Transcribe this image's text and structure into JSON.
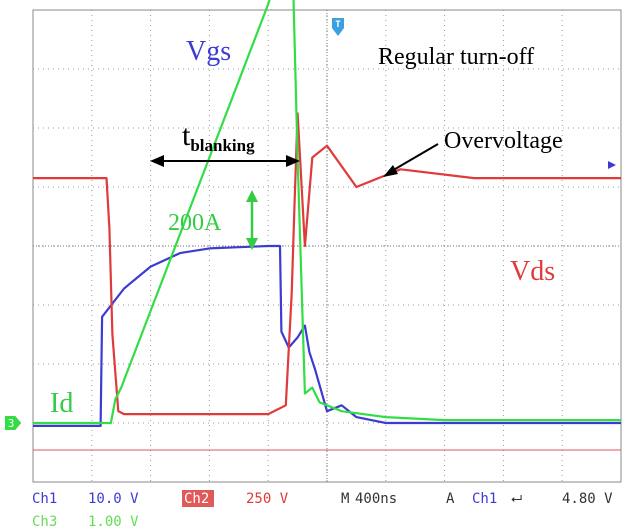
{
  "chart_data": {
    "type": "line",
    "title": "",
    "xlabel": "",
    "ylabel": "",
    "grid": true,
    "timebase": "400ns",
    "x_unit": "ns",
    "x_divisions": 10,
    "y_divisions": 8,
    "series": [
      {
        "name": "Vgs",
        "channel": "Ch1",
        "marker": "1",
        "color": "#3c3cd2",
        "x": [
          0,
          460,
          470,
          620,
          800,
          1000,
          1200,
          1400,
          1600,
          1680,
          1690,
          1740,
          1800,
          1850,
          1880,
          1920,
          2000,
          2100,
          2200,
          2400,
          2600,
          2800,
          3200,
          4000
        ],
        "values": [
          -0.05,
          -0.05,
          1.8,
          2.28,
          2.65,
          2.88,
          2.96,
          2.98,
          3.0,
          3.0,
          1.55,
          1.28,
          1.45,
          1.65,
          1.2,
          0.9,
          0.2,
          0.3,
          0.1,
          0.0,
          0.0,
          0.0,
          0.0,
          0.0
        ]
      },
      {
        "name": "Vds",
        "channel": "Ch2",
        "marker": "2",
        "color": "#e03a3a",
        "x": [
          0,
          500,
          520,
          540,
          580,
          620,
          800,
          1200,
          1600,
          1720,
          1760,
          1780,
          1800,
          1850,
          1900,
          2000,
          2200,
          2500,
          3000,
          4000
        ],
        "values": [
          4.15,
          4.15,
          3.3,
          1.5,
          0.2,
          0.15,
          0.15,
          0.15,
          0.15,
          0.3,
          2.2,
          3.8,
          5.25,
          3.0,
          4.5,
          4.7,
          4.0,
          4.3,
          4.15,
          4.15
        ]
      },
      {
        "name": "Id",
        "channel": "Ch3",
        "marker": "3",
        "color": "#33dd44",
        "x": [
          0,
          530,
          560,
          600,
          800,
          1000,
          1200,
          1400,
          1600,
          1700,
          1760,
          1800,
          1850,
          1900,
          1950,
          2100,
          2400,
          2800,
          4000
        ],
        "values": [
          0.0,
          0.0,
          0.4,
          0.6,
          1.9,
          3.2,
          4.5,
          5.8,
          7.1,
          7.9,
          8.35,
          4.5,
          0.5,
          0.6,
          0.35,
          0.2,
          0.1,
          0.05,
          0.05
        ]
      }
    ],
    "ylim": [
      -1,
      7
    ],
    "annotations": {
      "vgs": "Vgs",
      "regular": "Regular turn-off",
      "t_main": "t",
      "t_sub": "blanking",
      "overvoltage": "Overvoltage",
      "scale": "200A",
      "vds": "Vds",
      "id": "Id"
    },
    "status": {
      "ch1_label": "Ch1",
      "ch1_scale": "10.0 V",
      "ch2_label": "Ch2",
      "ch2_scale": "250 V",
      "m_label": "M",
      "m_value": "400ns",
      "a_label": "A",
      "a_channel": "Ch1",
      "a_slope": "⮠",
      "a_level": "4.80 V",
      "ch3_label": "Ch3",
      "ch3_scale": "1.00 V"
    },
    "trigger_marker": "T"
  }
}
